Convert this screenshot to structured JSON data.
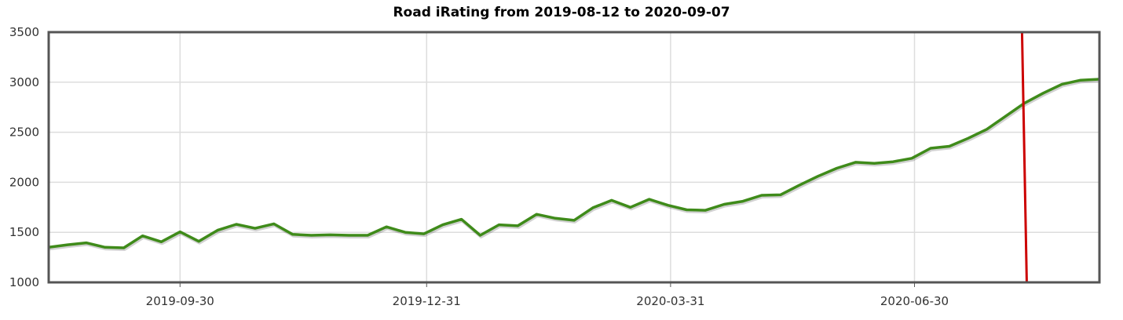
{
  "chart_data": {
    "type": "line",
    "title": "Road iRating from 2019-08-12 to 2020-09-07",
    "xlabel": "",
    "ylabel": "",
    "ylim": [
      1000,
      3500
    ],
    "xlim": [
      "2019-08-12",
      "2020-09-07"
    ],
    "y_ticks": [
      "1000",
      "1500",
      "2000",
      "2500",
      "3000",
      "3500"
    ],
    "x_ticks": [
      "2019-09-30",
      "2019-12-31",
      "2020-03-31",
      "2020-06-30"
    ],
    "grid": true,
    "legend": "none",
    "line_color": "#3f8b1a",
    "marker_line": {
      "date": "2020-08-10",
      "color": "#cc0000"
    },
    "series": [
      {
        "x": [
          "2019-08-12",
          "2019-08-19",
          "2019-08-26",
          "2019-09-02",
          "2019-09-09",
          "2019-09-16",
          "2019-09-23",
          "2019-09-30",
          "2019-10-07",
          "2019-10-14",
          "2019-10-21",
          "2019-10-28",
          "2019-11-04",
          "2019-11-11",
          "2019-11-18",
          "2019-11-25",
          "2019-12-02",
          "2019-12-09",
          "2019-12-16",
          "2019-12-23",
          "2019-12-30",
          "2020-01-06",
          "2020-01-13",
          "2020-01-20",
          "2020-01-27",
          "2020-02-03",
          "2020-02-10",
          "2020-02-17",
          "2020-02-24",
          "2020-03-02",
          "2020-03-09",
          "2020-03-16",
          "2020-03-23",
          "2020-03-30",
          "2020-04-06",
          "2020-04-13",
          "2020-04-20",
          "2020-04-27",
          "2020-05-04",
          "2020-05-11",
          "2020-05-18",
          "2020-05-25",
          "2020-06-01",
          "2020-06-08",
          "2020-06-15",
          "2020-06-22",
          "2020-06-29",
          "2020-07-06",
          "2020-07-13",
          "2020-07-20",
          "2020-07-27",
          "2020-08-03",
          "2020-08-10",
          "2020-08-17",
          "2020-08-24",
          "2020-08-31",
          "2020-09-07"
        ],
        "y": [
          1350,
          1375,
          1395,
          1350,
          1345,
          1465,
          1405,
          1505,
          1410,
          1520,
          1580,
          1540,
          1585,
          1480,
          1470,
          1475,
          1470,
          1470,
          1555,
          1500,
          1485,
          1575,
          1630,
          1470,
          1575,
          1565,
          1680,
          1640,
          1620,
          1745,
          1820,
          1750,
          1830,
          1770,
          1725,
          1720,
          1780,
          1810,
          1870,
          1875,
          1970,
          2060,
          2140,
          2200,
          2190,
          2205,
          2240,
          2340,
          2360,
          2440,
          2530,
          2660,
          2790,
          2890,
          2980,
          3020,
          3030
        ]
      }
    ]
  }
}
